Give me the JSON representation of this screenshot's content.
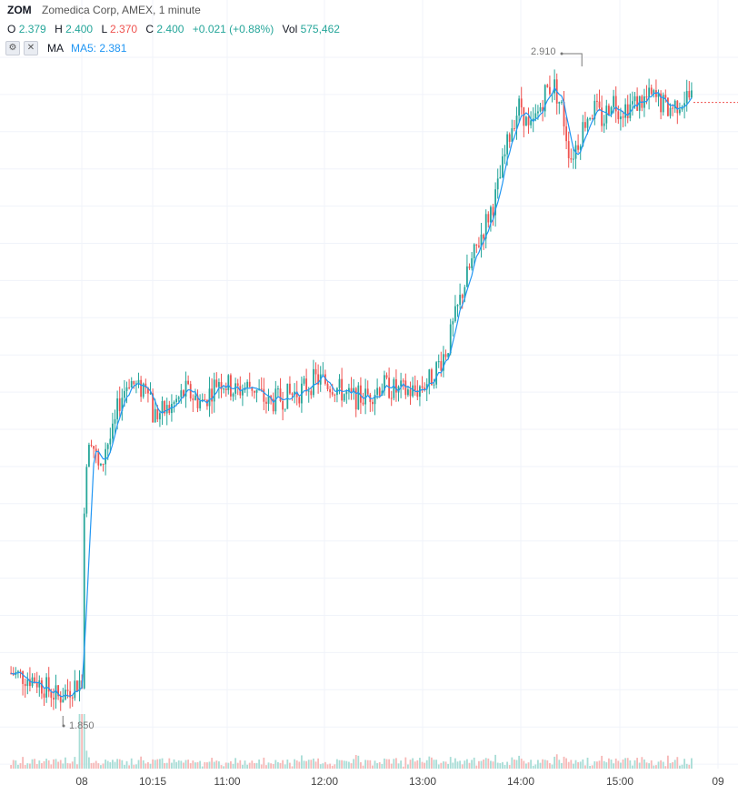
{
  "header": {
    "symbol": "ZOM",
    "description": "Zomedica Corp, AMEX, 1 minute"
  },
  "ohlc": {
    "open_label": "O",
    "open": "2.379",
    "high_label": "H",
    "high": "2.400",
    "low_label": "L",
    "low": "2.370",
    "close_label": "C",
    "close": "2.400",
    "change": "+0.021 (+0.88%)",
    "vol_label": "Vol",
    "volume": "575,462"
  },
  "indicator": {
    "settings_icon": "settings-icon",
    "close_icon": "close-icon",
    "name": "MA",
    "value": "MA5: 2.381"
  },
  "extremes": {
    "high": "2.910",
    "low": "1.850"
  },
  "colors": {
    "up": "#26a69a",
    "down": "#ef5350",
    "ma": "#2196f3",
    "grid": "#f0f3fa"
  },
  "chart_data": {
    "type": "candlestick",
    "title": "ZOM",
    "interval": "1 minute",
    "x_ticks": [
      "08",
      "10:15",
      "11:00",
      "12:00",
      "13:00",
      "14:00",
      "15:00",
      "09"
    ],
    "ylim": [
      1.8,
      2.95
    ],
    "grid": true,
    "price_series": {
      "name": "ZOM",
      "x": [
        "07:15",
        "07:30",
        "07:45",
        "07:55",
        "08:02",
        "08:05",
        "08:15",
        "08:25",
        "08:35",
        "08:45",
        "09:00",
        "09:10",
        "09:30",
        "09:50",
        "10:05",
        "10:10",
        "10:15",
        "10:25",
        "10:35",
        "10:45",
        "10:55",
        "11:05",
        "11:15",
        "11:25",
        "11:35",
        "11:45",
        "11:55",
        "12:05",
        "12:15",
        "12:25",
        "12:35",
        "12:45",
        "12:55",
        "13:05",
        "13:15",
        "13:25",
        "13:35",
        "13:45",
        "13:55",
        "14:00",
        "14:05",
        "14:10",
        "14:15",
        "14:20",
        "14:25",
        "14:30",
        "14:35",
        "14:40",
        "14:45",
        "14:50",
        "14:55",
        "15:00",
        "15:10",
        "15:20",
        "15:30",
        "15:40",
        "15:45"
      ],
      "y": [
        1.92,
        1.91,
        1.88,
        1.9,
        1.91,
        2.22,
        2.32,
        2.28,
        2.24,
        2.29,
        2.31,
        2.36,
        2.4,
        2.38,
        2.4,
        2.38,
        2.34,
        2.35,
        2.38,
        2.36,
        2.4,
        2.38,
        2.39,
        2.36,
        2.37,
        2.38,
        2.4,
        2.39,
        2.37,
        2.37,
        2.39,
        2.38,
        2.38,
        2.4,
        2.45,
        2.55,
        2.63,
        2.7,
        2.82,
        2.85,
        2.8,
        2.83,
        2.87,
        2.88,
        2.84,
        2.76,
        2.79,
        2.83,
        2.84,
        2.82,
        2.86,
        2.84,
        2.85,
        2.86,
        2.84,
        2.86,
        2.86
      ]
    },
    "ma_series": {
      "name": "MA5",
      "last": 2.381
    },
    "volume_spike_at": "08:02",
    "high": {
      "x": "14:37",
      "y": 2.91
    },
    "low": {
      "x": "07:48",
      "y": 1.85
    }
  }
}
